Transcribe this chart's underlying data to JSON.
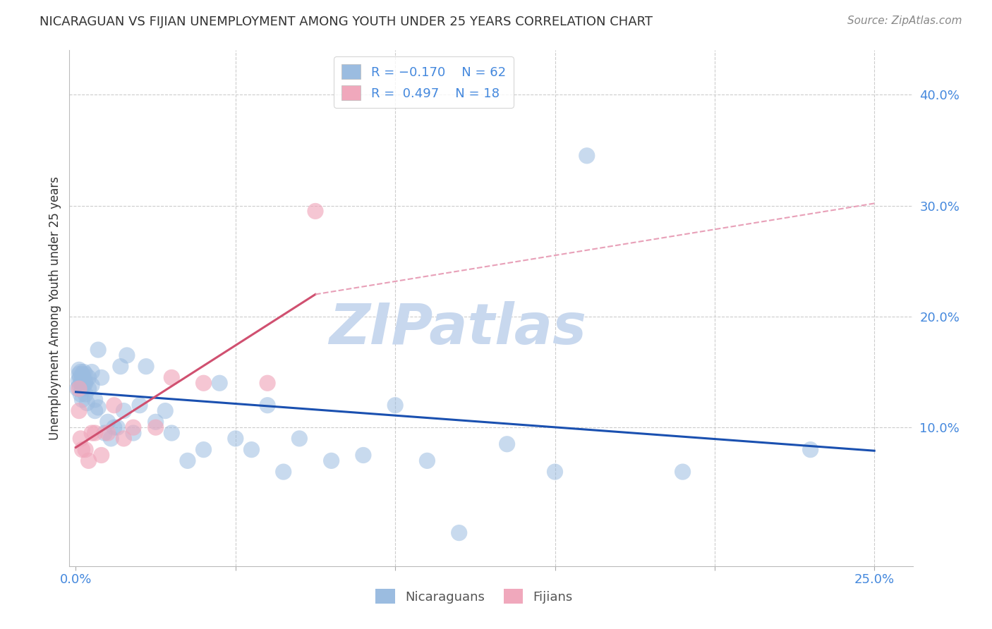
{
  "title": "NICARAGUAN VS FIJIAN UNEMPLOYMENT AMONG YOUTH UNDER 25 YEARS CORRELATION CHART",
  "source": "Source: ZipAtlas.com",
  "ylabel": "Unemployment Among Youth under 25 years",
  "x_ticks": [
    0.0,
    0.05,
    0.1,
    0.15,
    0.2,
    0.25
  ],
  "x_tick_labels": [
    "0.0%",
    "",
    "",
    "",
    "",
    "25.0%"
  ],
  "y_ticks": [
    0.0,
    0.1,
    0.2,
    0.3,
    0.4
  ],
  "y_tick_labels": [
    "",
    "10.0%",
    "20.0%",
    "30.0%",
    "40.0%"
  ],
  "xlim": [
    -0.002,
    0.262
  ],
  "ylim": [
    -0.025,
    0.44
  ],
  "watermark": "ZIPatlas",
  "watermark_color": "#c8d8ee",
  "nicaraguan_color": "#9bbce0",
  "fijian_color": "#f0a8bc",
  "trend_nicaraguan_color": "#1a50b0",
  "trend_fijian_color": "#d05070",
  "trend_fijian_dashed_color": "#e8a0b8",
  "background_color": "#ffffff",
  "grid_color": "#cccccc",
  "tick_label_color": "#4488dd",
  "title_color": "#333333",
  "ylabel_color": "#333333",
  "source_color": "#888888",
  "nicaraguan_x": [
    0.0005,
    0.0008,
    0.001,
    0.001,
    0.0012,
    0.0013,
    0.0015,
    0.0015,
    0.0018,
    0.002,
    0.002,
    0.002,
    0.002,
    0.0022,
    0.0025,
    0.0025,
    0.003,
    0.003,
    0.003,
    0.003,
    0.0035,
    0.004,
    0.004,
    0.005,
    0.005,
    0.006,
    0.006,
    0.007,
    0.007,
    0.008,
    0.009,
    0.01,
    0.011,
    0.012,
    0.013,
    0.014,
    0.015,
    0.016,
    0.018,
    0.02,
    0.022,
    0.025,
    0.028,
    0.03,
    0.035,
    0.04,
    0.045,
    0.05,
    0.055,
    0.06,
    0.065,
    0.07,
    0.08,
    0.09,
    0.1,
    0.11,
    0.12,
    0.135,
    0.15,
    0.16,
    0.19,
    0.23
  ],
  "nicaraguan_y": [
    0.135,
    0.142,
    0.148,
    0.152,
    0.138,
    0.145,
    0.15,
    0.13,
    0.143,
    0.148,
    0.14,
    0.135,
    0.125,
    0.145,
    0.138,
    0.15,
    0.142,
    0.148,
    0.13,
    0.14,
    0.122,
    0.145,
    0.135,
    0.15,
    0.138,
    0.125,
    0.115,
    0.17,
    0.118,
    0.145,
    0.095,
    0.105,
    0.09,
    0.1,
    0.1,
    0.155,
    0.115,
    0.165,
    0.095,
    0.12,
    0.155,
    0.105,
    0.115,
    0.095,
    0.07,
    0.08,
    0.14,
    0.09,
    0.08,
    0.12,
    0.06,
    0.09,
    0.07,
    0.075,
    0.12,
    0.07,
    0.005,
    0.085,
    0.06,
    0.345,
    0.06,
    0.08
  ],
  "fijian_x": [
    0.001,
    0.001,
    0.0015,
    0.002,
    0.003,
    0.004,
    0.005,
    0.006,
    0.008,
    0.01,
    0.012,
    0.015,
    0.018,
    0.025,
    0.03,
    0.04,
    0.06,
    0.075
  ],
  "fijian_y": [
    0.135,
    0.115,
    0.09,
    0.08,
    0.08,
    0.07,
    0.095,
    0.095,
    0.075,
    0.095,
    0.12,
    0.09,
    0.1,
    0.1,
    0.145,
    0.14,
    0.14,
    0.295
  ],
  "trend_nic_x0": 0.0,
  "trend_nic_y0": 0.132,
  "trend_nic_x1": 0.25,
  "trend_nic_y1": 0.079,
  "trend_fij_solid_x0": 0.0,
  "trend_fij_solid_y0": 0.082,
  "trend_fij_solid_x1": 0.075,
  "trend_fij_solid_y1": 0.22,
  "trend_fij_dashed_x0": 0.075,
  "trend_fij_dashed_y0": 0.22,
  "trend_fij_dashed_x1": 0.25,
  "trend_fij_dashed_y1": 0.302
}
